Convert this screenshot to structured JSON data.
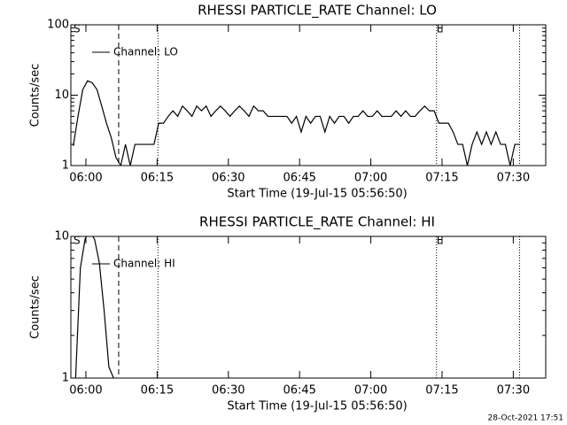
{
  "chart_data": [
    {
      "type": "line",
      "title": "RHESSI PARTICLE_RATE Channel: LO",
      "ylabel": "Counts/sec",
      "xlabel": "Start Time (19-Jul-15 05:56:50)",
      "x": [
        30,
        90,
        150,
        210,
        270,
        330,
        390,
        450,
        510,
        570,
        630,
        690,
        750,
        810,
        870,
        930,
        990,
        1050,
        1110,
        1170,
        1230,
        1290,
        1350,
        1410,
        1470,
        1530,
        1590,
        1650,
        1710,
        1770,
        1830,
        1890,
        1950,
        2010,
        2070,
        2130,
        2190,
        2250,
        2310,
        2370,
        2430,
        2490,
        2550,
        2610,
        2670,
        2730,
        2790,
        2850,
        2910,
        2970,
        3030,
        3090,
        3150,
        3210,
        3270,
        3330,
        3390,
        3450,
        3510,
        3570,
        3630,
        3690,
        3750,
        3810,
        3870,
        3930,
        3990,
        4050,
        4110,
        4170,
        4230,
        4290,
        4350,
        4410,
        4470,
        4530,
        4590,
        4650,
        4710,
        4770,
        4830,
        4890,
        4950,
        5010,
        5070,
        5130,
        5190,
        5250,
        5310,
        5370,
        5430,
        5490,
        5550,
        5610,
        5670
      ],
      "series": [
        {
          "name": "Channel: LO",
          "color": "#000000",
          "values": [
            1.9,
            5,
            12,
            16,
            15,
            12,
            7,
            4,
            2.5,
            1.3,
            1,
            2,
            1,
            2,
            2,
            2,
            2,
            2,
            4,
            4,
            5,
            6,
            5,
            7,
            6,
            5,
            7,
            6,
            7,
            5,
            6,
            7,
            6,
            5,
            6,
            7,
            6,
            5,
            7,
            6,
            6,
            5,
            5,
            5,
            5,
            5,
            4,
            5,
            3,
            5,
            4,
            5,
            5,
            3,
            5,
            4,
            5,
            5,
            4,
            5,
            5,
            6,
            5,
            5,
            6,
            5,
            5,
            5,
            6,
            5,
            6,
            5,
            5,
            6,
            7,
            6,
            6,
            4,
            4,
            4,
            3,
            2,
            2,
            1,
            2,
            3,
            2,
            3,
            2,
            3,
            2,
            2,
            1,
            2,
            2
          ]
        }
      ],
      "xlim": [
        0,
        6000
      ],
      "xticks": [
        {
          "value": 190,
          "label": "06:00"
        },
        {
          "value": 1090,
          "label": "06:15"
        },
        {
          "value": 1990,
          "label": "06:30"
        },
        {
          "value": 2890,
          "label": "06:45"
        },
        {
          "value": 3790,
          "label": "07:00"
        },
        {
          "value": 4690,
          "label": "07:15"
        },
        {
          "value": 5590,
          "label": "07:30"
        }
      ],
      "ylim": [
        1,
        100
      ],
      "yticks": [
        1,
        10,
        100
      ],
      "log_y": true,
      "vlines": [
        {
          "x": 604,
          "style": "dashed"
        },
        {
          "x": 1100,
          "style": "dotted"
        },
        {
          "x": 4620,
          "style": "dotted"
        },
        {
          "x": 5670,
          "style": "dotted"
        }
      ],
      "annotations": [
        {
          "text": "S",
          "x": 34
        },
        {
          "text": "E",
          "x": 4620
        }
      ]
    },
    {
      "type": "line",
      "title": "RHESSI PARTICLE_RATE Channel: HI",
      "ylabel": "Counts/sec",
      "xlabel": "Start Time (19-Jul-15 05:56:50)",
      "x": [
        60,
        120,
        180,
        240,
        300,
        360,
        420,
        480,
        540
      ],
      "series": [
        {
          "name": "Channel: HI",
          "color": "#000000",
          "values": [
            1,
            6,
            9.6,
            11,
            9.5,
            6.5,
            3,
            1.2,
            1
          ]
        }
      ],
      "xlim": [
        0,
        6000
      ],
      "xticks": [
        {
          "value": 190,
          "label": "06:00"
        },
        {
          "value": 1090,
          "label": "06:15"
        },
        {
          "value": 1990,
          "label": "06:30"
        },
        {
          "value": 2890,
          "label": "06:45"
        },
        {
          "value": 3790,
          "label": "07:00"
        },
        {
          "value": 4690,
          "label": "07:15"
        },
        {
          "value": 5590,
          "label": "07:30"
        }
      ],
      "ylim": [
        1,
        10
      ],
      "yticks": [
        1,
        10
      ],
      "log_y": true,
      "vlines": [
        {
          "x": 604,
          "style": "dashed"
        },
        {
          "x": 1100,
          "style": "dotted"
        },
        {
          "x": 4620,
          "style": "dotted"
        },
        {
          "x": 5670,
          "style": "dotted"
        }
      ],
      "annotations": [
        {
          "text": "S",
          "x": 34
        },
        {
          "text": "E",
          "x": 4620
        }
      ]
    }
  ],
  "footer": "28-Oct-2021 17:51"
}
